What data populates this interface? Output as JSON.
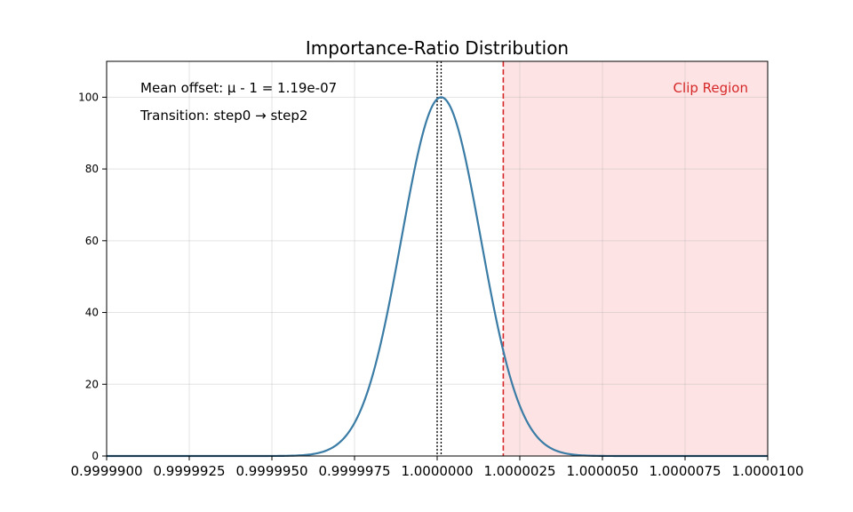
{
  "chart_data": {
    "type": "line",
    "title": "Importance-Ratio Distribution",
    "xlabel": "",
    "ylabel": "",
    "xlim": [
      0.99999,
      1.00001
    ],
    "ylim": [
      0,
      110
    ],
    "xticks": [
      0.99999,
      0.9999925,
      0.999995,
      0.9999975,
      1.0,
      1.0000025,
      1.000005,
      1.0000075,
      1.00001
    ],
    "xtick_labels": [
      "0.9999900",
      "0.9999925",
      "0.9999950",
      "0.9999975",
      "1.0000000",
      "1.0000025",
      "1.0000050",
      "1.0000075",
      "1.0000100"
    ],
    "yticks": [
      0,
      20,
      40,
      60,
      80,
      100
    ],
    "ytick_labels": [
      "0",
      "20",
      "40",
      "60",
      "80",
      "100"
    ],
    "grid": true,
    "series": [
      {
        "curve": "gaussian",
        "mean": 1.00000012,
        "sigma": 1.2e-06,
        "peak": 100,
        "color": "#3a7ca5"
      }
    ],
    "reference_lines": [
      {
        "x": 1.0,
        "style": "dotted",
        "color": "#000000"
      },
      {
        "x": 1.00000012,
        "style": "dotted",
        "color": "#000000"
      },
      {
        "x": 1.000002,
        "style": "dashed",
        "color": "#d62728"
      }
    ],
    "shaded_region": {
      "x_start": 1.000002,
      "x_end": 1.00001,
      "color": "#fde3e3",
      "label": "Clip Region",
      "label_color": "#d62728"
    },
    "annotations": [
      "Mean offset: μ - 1 = 1.19e-07",
      "Transition: step0 → step2"
    ]
  }
}
